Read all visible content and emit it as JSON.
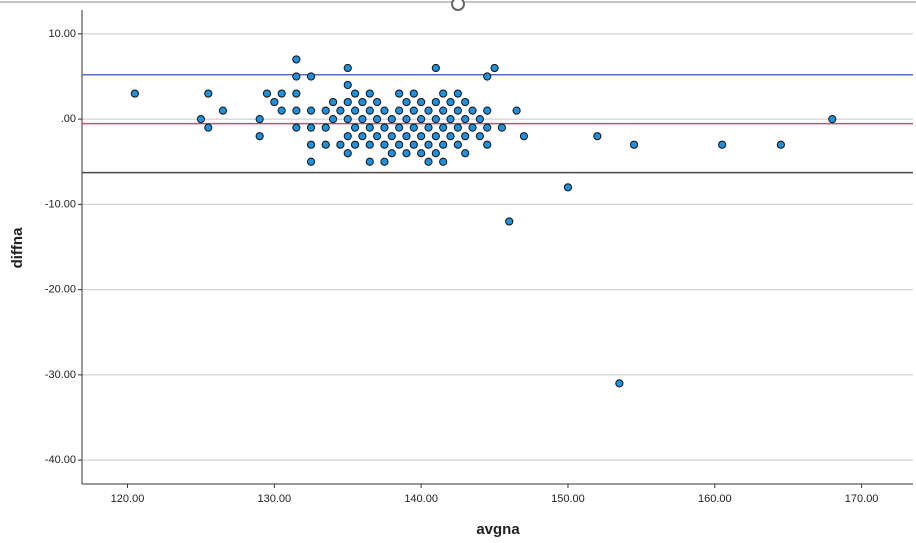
{
  "chart_data": {
    "type": "scatter",
    "x_label": "avgna",
    "y_label": "diffna",
    "xlim": [
      116.9,
      173.5
    ],
    "ylim": [
      -42.8,
      12.8
    ],
    "xticks": [
      {
        "value": 120,
        "label": "120.00"
      },
      {
        "value": 130,
        "label": "130.00"
      },
      {
        "value": 140,
        "label": "140.00"
      },
      {
        "value": 150,
        "label": "150.00"
      },
      {
        "value": 160,
        "label": "160.00"
      },
      {
        "value": 170,
        "label": "170.00"
      }
    ],
    "yticks": [
      {
        "value": 10,
        "label": "10.00"
      },
      {
        "value": 0,
        "label": ".00"
      },
      {
        "value": -10,
        "label": "-10.00"
      },
      {
        "value": -20,
        "label": "-20.00"
      },
      {
        "value": -30,
        "label": "-30.00"
      },
      {
        "value": -40,
        "label": "-40.00"
      }
    ],
    "grid": true,
    "color": "#1e90dc",
    "reference_lines": [
      {
        "value": 5.2,
        "color": "#5a6abf"
      },
      {
        "value": -0.53,
        "color": "#d9457a"
      },
      {
        "value": -6.27,
        "color": "#4a4a4a"
      }
    ],
    "x": [
      120.5,
      125,
      125.5,
      125.5,
      126.5,
      129,
      129,
      129.5,
      130,
      130.5,
      130.5,
      131.5,
      131.5,
      131.5,
      131.5,
      131.5,
      132.5,
      132.5,
      132.5,
      132.5,
      132.5,
      133.5,
      133.5,
      133.5,
      134,
      134,
      134.5,
      134.5,
      135,
      135,
      135,
      135,
      135,
      135,
      135.5,
      135.5,
      135.5,
      135.5,
      136,
      136,
      136,
      136.5,
      136.5,
      136.5,
      136.5,
      136.5,
      137,
      137,
      137,
      137.5,
      137.5,
      137.5,
      137.5,
      138,
      138,
      138,
      138.5,
      138.5,
      138.5,
      138.5,
      139,
      139,
      139,
      139,
      139.5,
      139.5,
      139.5,
      139.5,
      140,
      140,
      140,
      140,
      140.5,
      140.5,
      140.5,
      140.5,
      141,
      141,
      141,
      141,
      141,
      141.5,
      141.5,
      141.5,
      141.5,
      141.5,
      142,
      142,
      142,
      142.5,
      142.5,
      142.5,
      142.5,
      143,
      143,
      143,
      143,
      143.5,
      143.5,
      144,
      144,
      144.5,
      144.5,
      144.5,
      144.5,
      145,
      145.5,
      146,
      146.5,
      147,
      150,
      152,
      153.5,
      154.5,
      160.5,
      164.5,
      168
    ],
    "values": [
      3,
      0,
      3,
      -1,
      1,
      0,
      -2,
      3,
      2,
      3,
      1,
      7,
      5,
      3,
      1,
      -1,
      5,
      1,
      -1,
      -3,
      -5,
      1,
      -1,
      -3,
      2,
      0,
      1,
      -3,
      6,
      4,
      2,
      0,
      -2,
      -4,
      3,
      1,
      -1,
      -3,
      2,
      0,
      -2,
      3,
      1,
      -1,
      -3,
      -5,
      2,
      0,
      -2,
      1,
      -1,
      -3,
      -5,
      0,
      -2,
      -4,
      3,
      1,
      -1,
      -3,
      2,
      0,
      -2,
      -4,
      3,
      1,
      -1,
      -3,
      2,
      0,
      -2,
      -4,
      1,
      -1,
      -3,
      -5,
      6,
      2,
      0,
      -2,
      -4,
      3,
      1,
      -1,
      -3,
      -5,
      2,
      0,
      -2,
      3,
      1,
      -1,
      -3,
      2,
      0,
      -2,
      -4,
      1,
      -1,
      0,
      -2,
      5,
      1,
      -1,
      -3,
      6,
      -1,
      -12,
      1,
      -2,
      -8,
      -2,
      -31,
      -3,
      -3,
      -3,
      0
    ]
  }
}
